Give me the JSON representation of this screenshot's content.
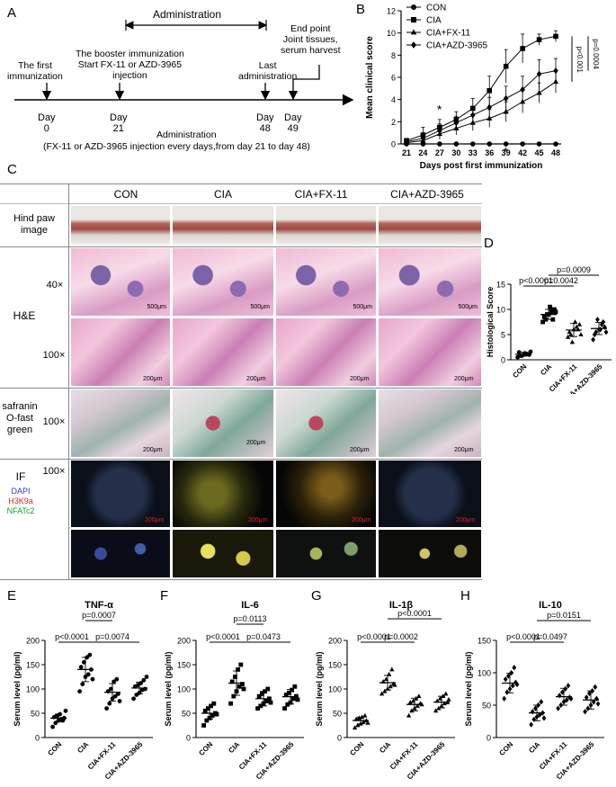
{
  "panels": {
    "A": "A",
    "B": "B",
    "C": "C",
    "D": "D",
    "E": "E",
    "F": "F",
    "G": "G",
    "H": "H"
  },
  "timeline": {
    "administration_header": "Administration",
    "end_point": "End point\nJoint tissues,\nserum harvest",
    "first_immunization": "The first\nimmunization",
    "booster": "The booster immunization\nStart FX-11 or AZD-3965\ninjection",
    "last_admin": "Last\nadministration",
    "days": [
      {
        "label": "Day\n0"
      },
      {
        "label": "Day\n21"
      },
      {
        "label": "Day\n48"
      },
      {
        "label": "Day\n49"
      }
    ],
    "administration_sub": "Administration",
    "note": "(FX-11 or AZD-3965 injection every days,from day 21 to day 48)"
  },
  "histology": {
    "columns": [
      "CON",
      "CIA",
      "CIA+FX-11",
      "CIA+AZD-3965"
    ],
    "rows": {
      "paw": "Hind paw\nimage",
      "he": "H&E",
      "he_40": "40×",
      "he_100": "100×",
      "saf": "safranin\nO-fast\ngreen",
      "saf_100": "100×",
      "if_label": "IF",
      "if_100": "100×",
      "if_legend": [
        "DAPI",
        "H3K9a",
        "NFATc2"
      ]
    },
    "scalebars": {
      "he40": "500μm",
      "he100": "200μm",
      "saf": "200μm",
      "if": "200μm"
    },
    "colors": {
      "dapi": "#2b39d8",
      "h3k9a": "#e0241f",
      "nfatc2": "#1a9a2a"
    }
  },
  "chart_data": [
    {
      "id": "B",
      "type": "line",
      "ylabel": "Mean clinical score",
      "xlabel": "Days post first immunization",
      "x": [
        21,
        24,
        27,
        30,
        33,
        36,
        39,
        42,
        45,
        48
      ],
      "ylim": [
        0,
        12
      ],
      "yticks": [
        0,
        2,
        4,
        6,
        8,
        10,
        12
      ],
      "series": [
        {
          "name": "CON",
          "marker": "circle",
          "values": [
            0,
            0,
            0,
            0,
            0,
            0,
            0,
            0,
            0,
            0
          ]
        },
        {
          "name": "CIA",
          "marker": "square",
          "values": [
            0.3,
            0.8,
            1.5,
            2.2,
            3.2,
            4.8,
            7.0,
            8.6,
            9.4,
            9.7
          ],
          "err": [
            0.2,
            0.7,
            0.7,
            0.7,
            0.9,
            1.3,
            1.5,
            1.3,
            0.5,
            0.5
          ]
        },
        {
          "name": "CIA+FX-11",
          "marker": "triangle",
          "values": [
            0.1,
            0.3,
            0.9,
            1.4,
            1.9,
            2.3,
            2.9,
            3.8,
            4.6,
            5.6
          ],
          "err": [
            0.2,
            0.4,
            0.5,
            0.6,
            0.7,
            0.8,
            0.9,
            1.0,
            0.9,
            1.0
          ]
        },
        {
          "name": "CIA+AZD-3965",
          "marker": "diamond",
          "values": [
            0.2,
            0.5,
            1.2,
            1.9,
            2.6,
            3.3,
            4.1,
            4.9,
            6.3,
            6.6
          ],
          "err": [
            0.2,
            0.5,
            0.6,
            0.6,
            0.8,
            0.9,
            1.1,
            1.2,
            1.3,
            1.1
          ]
        }
      ],
      "annotations": [
        "*",
        "*",
        "p<0.001",
        "p=0.0004"
      ]
    },
    {
      "id": "D",
      "type": "scatter",
      "ylabel": "Histological Score",
      "categories": [
        "CON",
        "CIA",
        "CIA+FX-11",
        "CIA+AZD-3965"
      ],
      "ylim": [
        0,
        15
      ],
      "yticks": [
        0,
        5,
        10,
        15
      ],
      "points": [
        [
          0.5,
          0.8,
          1.0,
          1.2,
          1.0,
          1.5,
          0.8,
          1.3,
          1.1,
          1.6
        ],
        [
          7.5,
          8.0,
          9.0,
          9.5,
          10.0,
          8.5,
          9.0,
          10.5,
          8.0,
          9.5
        ],
        [
          4.5,
          5.0,
          6.0,
          6.5,
          7.0,
          5.5,
          3.5,
          7.5,
          6.0,
          5.0
        ],
        [
          4.0,
          5.5,
          6.0,
          7.0,
          6.5,
          5.0,
          8.0,
          6.0,
          7.5,
          5.5
        ]
      ],
      "means": [
        1.1,
        9.0,
        5.9,
        6.2
      ],
      "sd": [
        0.4,
        1.0,
        1.3,
        1.2
      ],
      "comparisons": [
        {
          "from": 0,
          "to": 1,
          "label": "p<0.0001"
        },
        {
          "from": 1,
          "to": 3,
          "label": "p=0.0009"
        },
        {
          "from": 1,
          "to": 2,
          "label": "p=0.0042"
        }
      ]
    },
    {
      "id": "E",
      "type": "scatter",
      "title": "TNF-α",
      "ylabel": "Serum level (pg/ml)",
      "categories": [
        "CON",
        "CIA",
        "CIA+FX-11",
        "CIA+AZD-3965"
      ],
      "ylim": [
        0,
        200
      ],
      "yticks": [
        0,
        50,
        100,
        150,
        200
      ],
      "marker": "circle",
      "points": [
        [
          22,
          30,
          35,
          38,
          40,
          42,
          45,
          48,
          35,
          55
        ],
        [
          95,
          110,
          125,
          130,
          140,
          145,
          155,
          165,
          170,
          120
        ],
        [
          60,
          70,
          80,
          85,
          90,
          95,
          100,
          115,
          120,
          75
        ],
        [
          80,
          88,
          92,
          98,
          100,
          105,
          108,
          112,
          118,
          125
        ]
      ],
      "means": [
        40,
        140,
        93,
        102
      ],
      "sd": [
        8,
        25,
        18,
        12
      ],
      "comparisons": [
        {
          "from": 0,
          "to": 1,
          "label": "p<0.0001"
        },
        {
          "from": 1,
          "to": 2,
          "label": "p=0.0007"
        },
        {
          "from": 1,
          "to": 3,
          "label": "p=0.0074"
        }
      ]
    },
    {
      "id": "F",
      "type": "scatter",
      "title": "IL-6",
      "ylabel": "Serum level (pg/ml)",
      "categories": [
        "CON",
        "CIA",
        "CIA+FX-11",
        "CIA+AZD-3965"
      ],
      "ylim": [
        0,
        200
      ],
      "yticks": [
        0,
        50,
        100,
        150,
        200
      ],
      "marker": "square",
      "points": [
        [
          25,
          35,
          40,
          45,
          50,
          55,
          60,
          65,
          70,
          48
        ],
        [
          70,
          85,
          95,
          105,
          110,
          115,
          125,
          140,
          150,
          100
        ],
        [
          60,
          65,
          70,
          75,
          80,
          85,
          90,
          95,
          100,
          72
        ],
        [
          60,
          68,
          72,
          80,
          85,
          88,
          92,
          98,
          105,
          78
        ]
      ],
      "means": [
        50,
        112,
        80,
        84
      ],
      "sd": [
        12,
        25,
        15,
        15
      ],
      "comparisons": [
        {
          "from": 0,
          "to": 1,
          "label": "p<0.0001"
        },
        {
          "from": 1,
          "to": 2,
          "label": "p=0.0113"
        },
        {
          "from": 1,
          "to": 3,
          "label": "p=0.0473"
        }
      ]
    },
    {
      "id": "G",
      "type": "scatter",
      "title": "IL-1β",
      "ylabel": "Serum level (pg/ml)",
      "categories": [
        "CON",
        "CIA",
        "CIA+FX-11",
        "CIA+AZD-3965"
      ],
      "ylim": [
        0,
        200
      ],
      "yticks": [
        0,
        50,
        100,
        150,
        200
      ],
      "marker": "triangle",
      "points": [
        [
          20,
          25,
          28,
          32,
          35,
          38,
          40,
          42,
          45,
          30
        ],
        [
          90,
          95,
          100,
          105,
          110,
          115,
          120,
          130,
          140,
          108
        ],
        [
          45,
          55,
          60,
          65,
          70,
          72,
          75,
          80,
          85,
          68
        ],
        [
          55,
          60,
          65,
          70,
          72,
          75,
          80,
          85,
          90,
          78
        ]
      ],
      "means": [
        35,
        113,
        68,
        73
      ],
      "sd": [
        7,
        15,
        13,
        12
      ],
      "comparisons": [
        {
          "from": 0,
          "to": 1,
          "label": "p<0.0001"
        },
        {
          "from": 1,
          "to": 3,
          "label": "p<0.0001"
        },
        {
          "from": 1,
          "to": 2,
          "label": "p=0.0002"
        }
      ]
    },
    {
      "id": "H",
      "type": "scatter",
      "title": "IL-10",
      "ylabel": "Serum level (pg/ml)",
      "categories": [
        "CON",
        "CIA",
        "CIA+FX-11",
        "CIA+AZD-3965"
      ],
      "ylim": [
        0,
        150
      ],
      "yticks": [
        0,
        50,
        100,
        150
      ],
      "marker": "diamond",
      "points": [
        [
          60,
          70,
          75,
          80,
          85,
          90,
          95,
          100,
          108,
          82
        ],
        [
          20,
          28,
          32,
          35,
          38,
          40,
          45,
          50,
          55,
          30
        ],
        [
          45,
          50,
          55,
          58,
          62,
          65,
          70,
          75,
          80,
          60
        ],
        [
          40,
          45,
          50,
          55,
          60,
          62,
          68,
          72,
          78,
          52
        ]
      ],
      "means": [
        84,
        38,
        63,
        58
      ],
      "sd": [
        15,
        12,
        13,
        14
      ],
      "comparisons": [
        {
          "from": 0,
          "to": 1,
          "label": "p<0.0001"
        },
        {
          "from": 1,
          "to": 3,
          "label": "p=0.0151"
        },
        {
          "from": 1,
          "to": 2,
          "label": "p=0.0497"
        }
      ]
    }
  ]
}
